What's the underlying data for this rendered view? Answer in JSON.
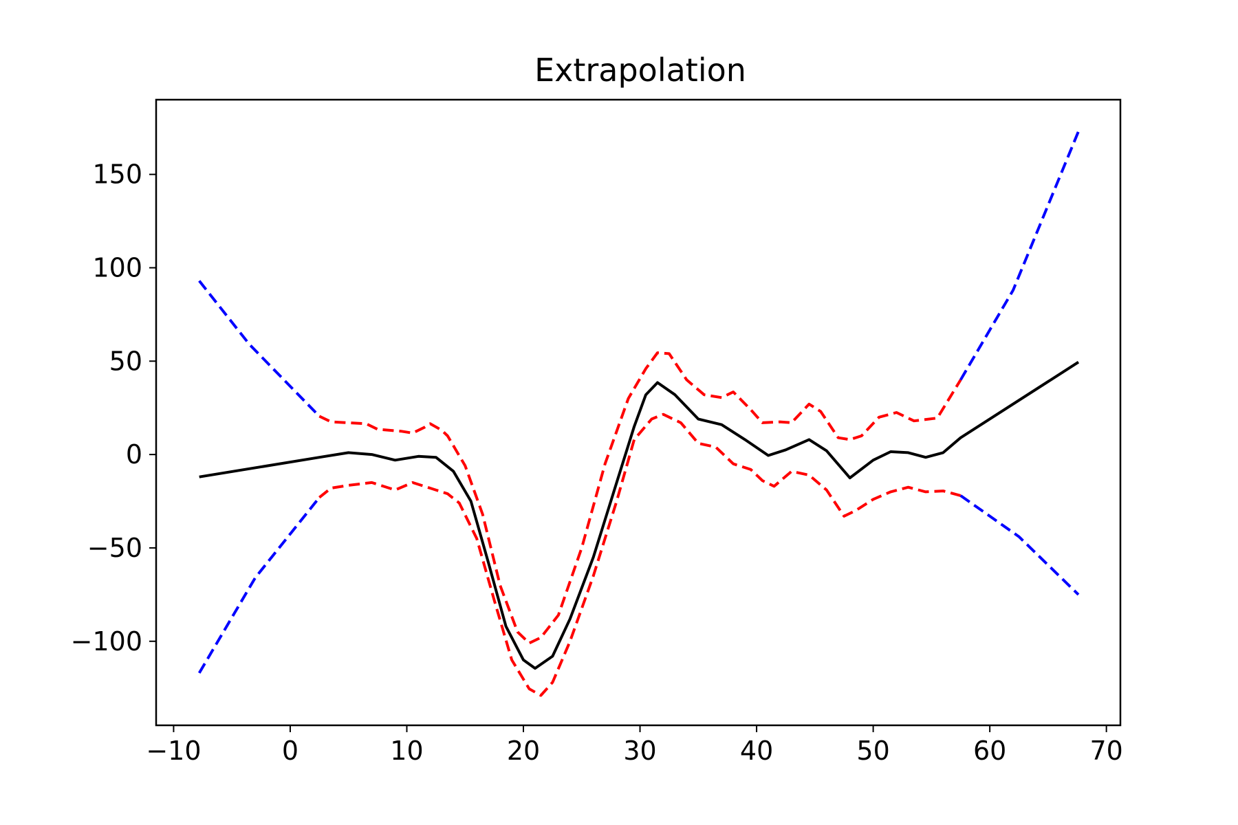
{
  "chart_data": {
    "type": "line",
    "title": "Extrapolation",
    "xlabel": "",
    "ylabel": "",
    "xlim": [
      -11.5,
      71.2
    ],
    "ylim": [
      -145,
      190
    ],
    "x_ticks": [
      -10,
      0,
      10,
      20,
      30,
      40,
      50,
      60,
      70
    ],
    "x_tick_labels": [
      "−10",
      "0",
      "10",
      "20",
      "30",
      "40",
      "50",
      "60",
      "70"
    ],
    "y_ticks": [
      -100,
      -50,
      0,
      50,
      100,
      150
    ],
    "y_tick_labels": [
      "−100",
      "−50",
      "0",
      "50",
      "100",
      "150"
    ],
    "grid": false,
    "legend": "none",
    "series": [
      {
        "color": "#000000",
        "style": "solid",
        "points": [
          [
            -7.8,
            -12
          ],
          [
            2.5,
            -1.5
          ],
          [
            5,
            1
          ],
          [
            7,
            0
          ],
          [
            9,
            -3
          ],
          [
            11,
            -1
          ],
          [
            12.5,
            -1.5
          ],
          [
            14,
            -9
          ],
          [
            15.5,
            -25
          ],
          [
            17,
            -58
          ],
          [
            18.5,
            -92
          ],
          [
            20,
            -110
          ],
          [
            21,
            -114.5
          ],
          [
            22.5,
            -108
          ],
          [
            24,
            -88
          ],
          [
            26,
            -55
          ],
          [
            28,
            -15
          ],
          [
            29.5,
            15
          ],
          [
            30.5,
            32
          ],
          [
            31.5,
            38.5
          ],
          [
            33,
            32
          ],
          [
            35,
            19
          ],
          [
            37,
            16
          ],
          [
            39,
            8
          ],
          [
            41,
            -0.5
          ],
          [
            42.5,
            2.5
          ],
          [
            44.5,
            8
          ],
          [
            46,
            2
          ],
          [
            48,
            -12.5
          ],
          [
            50,
            -3
          ],
          [
            51.5,
            1.5
          ],
          [
            53,
            1
          ],
          [
            54.5,
            -1.5
          ],
          [
            56,
            1
          ],
          [
            57.5,
            9
          ],
          [
            67.6,
            49.5
          ]
        ]
      },
      {
        "color": "#ff0000",
        "style": "dashed",
        "points": [
          [
            2.5,
            20.5
          ],
          [
            3.5,
            17.5
          ],
          [
            6.5,
            16.5
          ],
          [
            7.5,
            13.5
          ],
          [
            9.5,
            12.5
          ],
          [
            10.5,
            11.5
          ],
          [
            11.5,
            14.5
          ],
          [
            12,
            16.5
          ],
          [
            13,
            13
          ],
          [
            13.5,
            10
          ],
          [
            15,
            -6
          ],
          [
            16.5,
            -32
          ],
          [
            18,
            -70
          ],
          [
            19.5,
            -95
          ],
          [
            20.5,
            -101
          ],
          [
            21.5,
            -98
          ],
          [
            23,
            -86
          ],
          [
            25,
            -50
          ],
          [
            27,
            -5
          ],
          [
            29,
            30
          ],
          [
            30.5,
            46
          ],
          [
            31.5,
            54.5
          ],
          [
            32.5,
            54
          ],
          [
            34,
            40
          ],
          [
            35.5,
            32
          ],
          [
            37,
            30.5
          ],
          [
            38,
            33.5
          ],
          [
            39.5,
            24
          ],
          [
            40.5,
            17
          ],
          [
            42,
            17.5
          ],
          [
            43,
            17
          ],
          [
            44.5,
            27
          ],
          [
            45.5,
            23
          ],
          [
            47,
            9
          ],
          [
            48,
            8
          ],
          [
            49,
            10
          ],
          [
            50.5,
            20
          ],
          [
            52,
            22.5
          ],
          [
            53.5,
            18
          ],
          [
            55.5,
            19.5
          ],
          [
            57.5,
            40
          ]
        ]
      },
      {
        "color": "#ff0000",
        "style": "dashed",
        "points": [
          [
            2.5,
            -23
          ],
          [
            3.5,
            -18
          ],
          [
            5,
            -16.5
          ],
          [
            7,
            -15
          ],
          [
            9,
            -19
          ],
          [
            10.5,
            -15
          ],
          [
            12,
            -18
          ],
          [
            13.5,
            -21
          ],
          [
            14.5,
            -26
          ],
          [
            16,
            -45
          ],
          [
            17.5,
            -78
          ],
          [
            19,
            -110
          ],
          [
            20.5,
            -125.5
          ],
          [
            21.5,
            -129
          ],
          [
            22.5,
            -122
          ],
          [
            24,
            -100
          ],
          [
            26,
            -65
          ],
          [
            28,
            -25
          ],
          [
            29.5,
            8
          ],
          [
            31,
            19
          ],
          [
            32,
            21.5
          ],
          [
            33.5,
            17
          ],
          [
            35,
            6
          ],
          [
            36.5,
            4
          ],
          [
            38,
            -5
          ],
          [
            39.5,
            -8
          ],
          [
            40.5,
            -14
          ],
          [
            41.5,
            -17
          ],
          [
            43,
            -9
          ],
          [
            44.5,
            -11
          ],
          [
            46,
            -19
          ],
          [
            47.5,
            -33
          ],
          [
            48.5,
            -30
          ],
          [
            50,
            -24
          ],
          [
            51.5,
            -20
          ],
          [
            53,
            -17.5
          ],
          [
            54.5,
            -20
          ],
          [
            56,
            -19.5
          ],
          [
            57.5,
            -22
          ]
        ]
      },
      {
        "color": "#0000ff",
        "style": "dashed",
        "points": [
          [
            -7.8,
            93
          ],
          [
            -3.5,
            59
          ],
          [
            2.5,
            20.5
          ]
        ]
      },
      {
        "color": "#0000ff",
        "style": "dashed",
        "points": [
          [
            -7.8,
            -117
          ],
          [
            -3,
            -66
          ],
          [
            2.5,
            -23
          ]
        ]
      },
      {
        "color": "#0000ff",
        "style": "dashed",
        "points": [
          [
            57.5,
            40
          ],
          [
            62,
            88
          ],
          [
            67.6,
            173
          ]
        ]
      },
      {
        "color": "#0000ff",
        "style": "dashed",
        "points": [
          [
            57.5,
            -22
          ],
          [
            62.5,
            -44
          ],
          [
            67.6,
            -75
          ]
        ]
      }
    ]
  }
}
